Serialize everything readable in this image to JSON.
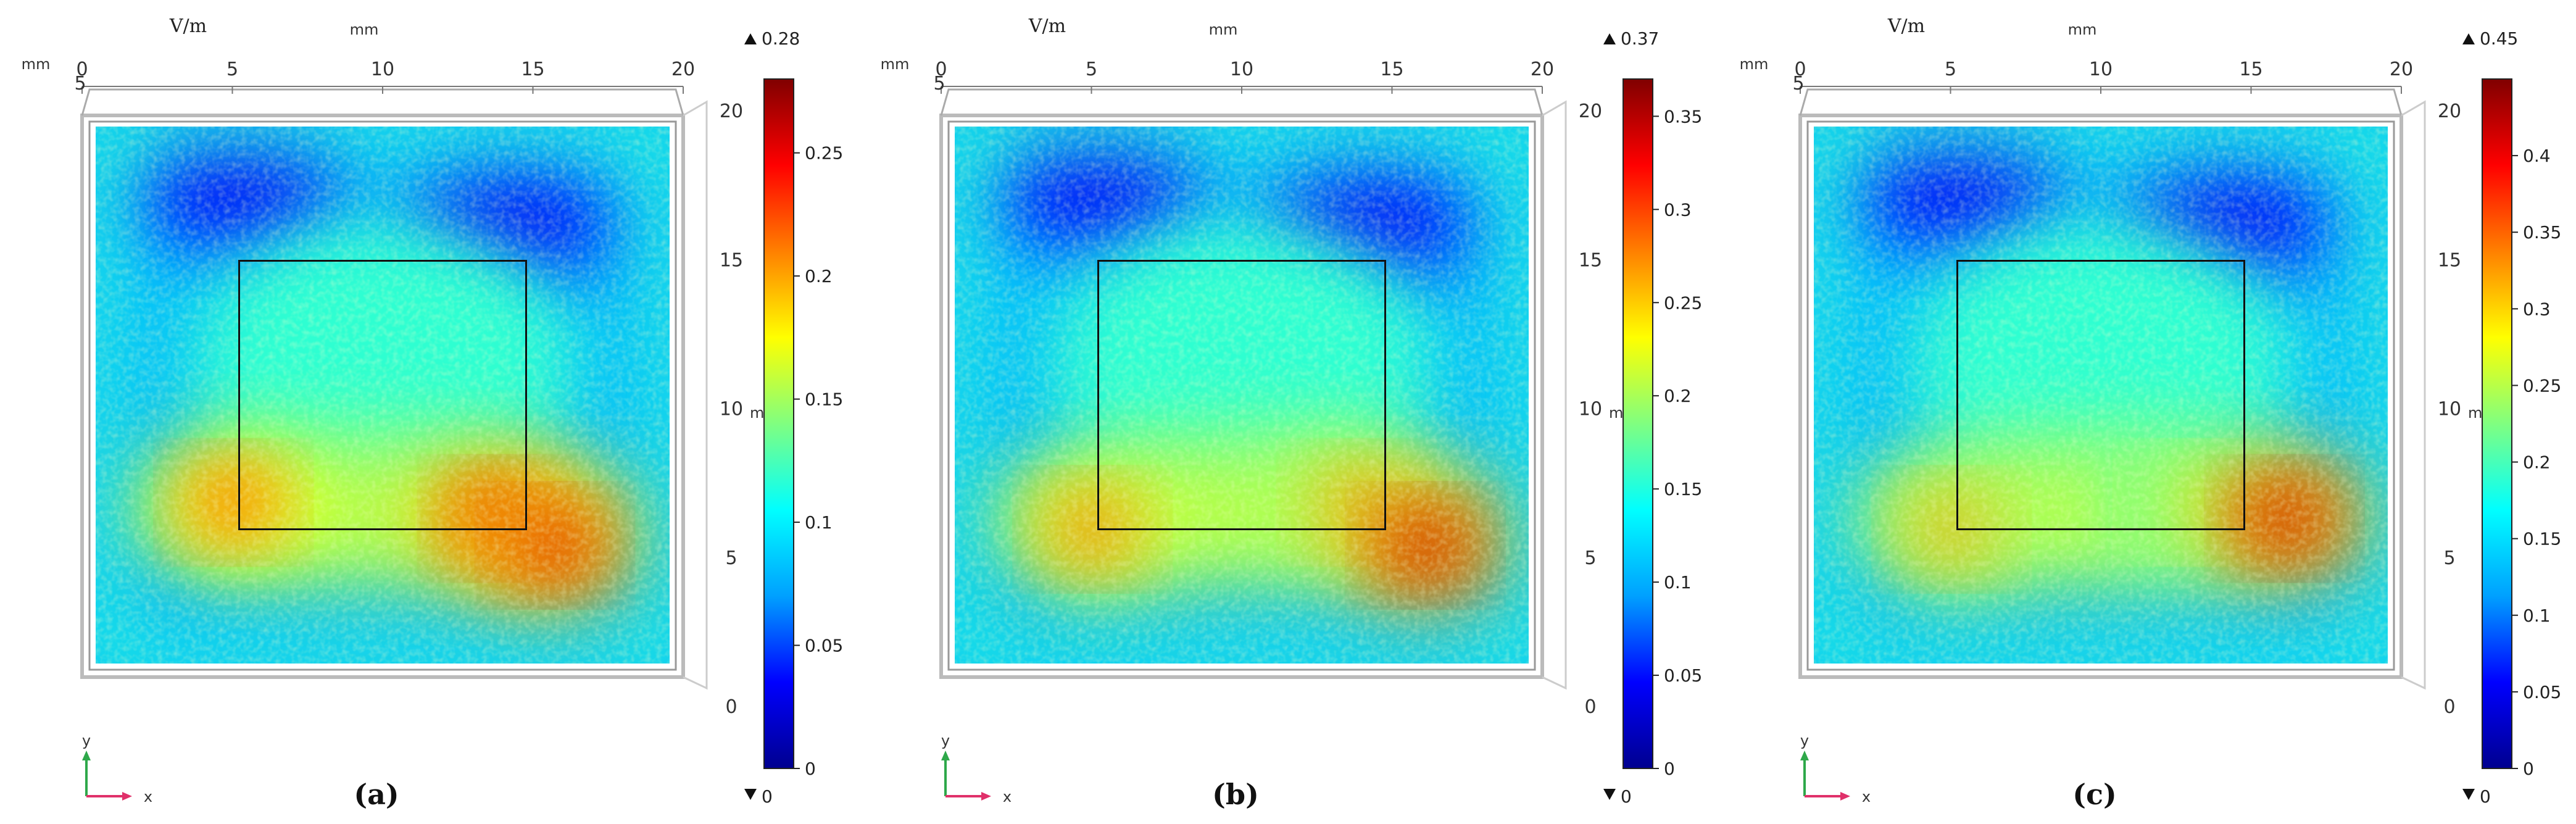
{
  "chart_data": [
    {
      "type": "heatmap",
      "caption": "(a)",
      "colorbar_label": "V/m",
      "axis_unit": "mm",
      "top_axis_ticks": [
        "0",
        "5",
        "10",
        "15",
        "20"
      ],
      "left_top_tick": "5",
      "right_axis_ticks": [
        "0",
        "5",
        "10",
        "15",
        "20"
      ],
      "right_axis_label": "m",
      "colorbar_max_label": "0.28",
      "colorbar_min_label": "0",
      "colorbar_ticks": [
        "0",
        "0.05",
        "0.1",
        "0.15",
        "0.2",
        "0.25"
      ],
      "colorbar_tick_values": [
        0,
        0.05,
        0.1,
        0.15,
        0.2,
        0.25
      ],
      "value_range": [
        0,
        0.28
      ],
      "domain_mm": [
        0,
        20
      ],
      "inner_square_mm": {
        "x": [
          5,
          15
        ],
        "y": [
          5,
          15
        ]
      },
      "hotspots_norm": [
        {
          "x": 0.24,
          "y": 0.3,
          "level": 0.82
        },
        {
          "x": 0.7,
          "y": 0.27,
          "level": 0.92
        },
        {
          "x": 0.8,
          "y": 0.22,
          "level": 0.92
        }
      ]
    },
    {
      "type": "heatmap",
      "caption": "(b)",
      "colorbar_label": "V/m",
      "axis_unit": "mm",
      "top_axis_ticks": [
        "0",
        "5",
        "10",
        "15",
        "20"
      ],
      "left_top_tick": "5",
      "right_axis_ticks": [
        "0",
        "5",
        "10",
        "15",
        "20"
      ],
      "right_axis_label": "m",
      "colorbar_max_label": "0.37",
      "colorbar_min_label": "0",
      "colorbar_ticks": [
        "0",
        "0.05",
        "0.1",
        "0.15",
        "0.2",
        "0.25",
        "0.3",
        "0.35"
      ],
      "colorbar_tick_values": [
        0,
        0.05,
        0.1,
        0.15,
        0.2,
        0.25,
        0.3,
        0.35
      ],
      "value_range": [
        0,
        0.37
      ],
      "domain_mm": [
        0,
        20
      ],
      "inner_square_mm": {
        "x": [
          5,
          15
        ],
        "y": [
          5,
          15
        ]
      },
      "hotspots_norm": [
        {
          "x": 0.24,
          "y": 0.25,
          "level": 0.78
        },
        {
          "x": 0.7,
          "y": 0.3,
          "level": 0.72
        },
        {
          "x": 0.82,
          "y": 0.22,
          "level": 0.95
        }
      ]
    },
    {
      "type": "heatmap",
      "caption": "(c)",
      "colorbar_label": "V/m",
      "axis_unit": "mm",
      "top_axis_ticks": [
        "0",
        "5",
        "10",
        "15",
        "20"
      ],
      "left_top_tick": "5",
      "right_axis_ticks": [
        "0",
        "5",
        "10",
        "15",
        "20"
      ],
      "right_axis_label": "m",
      "colorbar_max_label": "0.45",
      "colorbar_min_label": "0",
      "colorbar_ticks": [
        "0",
        "0.05",
        "0.1",
        "0.15",
        "0.2",
        "0.25",
        "0.3",
        "0.35",
        "0.4"
      ],
      "colorbar_tick_values": [
        0,
        0.05,
        0.1,
        0.15,
        0.2,
        0.25,
        0.3,
        0.35,
        0.4
      ],
      "value_range": [
        0,
        0.45
      ],
      "domain_mm": [
        0,
        20
      ],
      "inner_square_mm": {
        "x": [
          5,
          15
        ],
        "y": [
          5,
          15
        ]
      },
      "hotspots_norm": [
        {
          "x": 0.24,
          "y": 0.25,
          "level": 0.72
        },
        {
          "x": 0.66,
          "y": 0.3,
          "level": 0.62
        },
        {
          "x": 0.82,
          "y": 0.27,
          "level": 0.95
        }
      ]
    }
  ],
  "triad": {
    "y_label": "y",
    "x_label": "x"
  },
  "colors": {
    "jet": [
      "#00008f",
      "#0000ff",
      "#00a0ff",
      "#00ffff",
      "#80ff80",
      "#ffff00",
      "#ff8000",
      "#ff0000",
      "#800000"
    ],
    "triad_y": "#2ea84a",
    "triad_x": "#e0306a"
  }
}
